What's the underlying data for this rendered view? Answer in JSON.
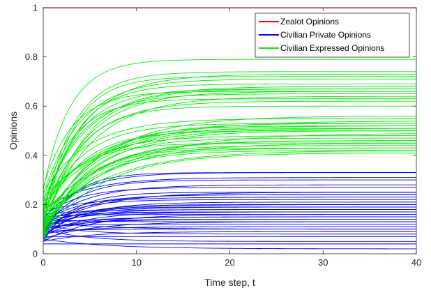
{
  "chart_data": {
    "type": "line",
    "xlabel": "Time step, t",
    "ylabel": "Opinions",
    "xlim": [
      0,
      40
    ],
    "ylim": [
      0,
      1
    ],
    "xticks": [
      0,
      10,
      20,
      30,
      40
    ],
    "yticks": [
      0,
      0.2,
      0.4,
      0.6,
      0.8,
      1
    ],
    "ytick_labels": [
      "0",
      "0.2",
      "0.4",
      "0.6",
      "0.8",
      "1"
    ],
    "grid": false,
    "legend_position": "top-right",
    "colors": {
      "zealot": "#ff0000",
      "private": "#0000ff",
      "expressed": "#00ee00"
    },
    "legend": [
      {
        "label": "Zealot Opinions",
        "series": "zealot"
      },
      {
        "label": "Civilian Private Opinions",
        "series": "private"
      },
      {
        "label": "Civilian Expressed Opinions",
        "series": "expressed"
      }
    ],
    "series": [
      {
        "name": "Zealot Opinions",
        "group": "zealot",
        "x": [
          0,
          40
        ],
        "y": [
          1,
          1
        ]
      },
      {
        "name": "Civilian Private Opinions",
        "group": "private",
        "start": [
          0.06,
          0.04,
          0.1,
          0.07,
          0.12,
          0.05,
          0.09,
          0.13,
          0.08,
          0.11,
          0.06,
          0.14,
          0.1,
          0.07,
          0.12,
          0.09,
          0.15,
          0.05,
          0.11,
          0.08,
          0.13,
          0.16,
          0.1,
          0.06,
          0.12,
          0.09,
          0.14,
          0.07,
          0.11,
          0.17,
          0.08,
          0.13,
          0.05,
          0.1,
          0.15,
          0.12,
          0.09,
          0.18,
          0.07,
          0.14
        ],
        "final": [
          0.02,
          0.04,
          0.05,
          0.07,
          0.08,
          0.09,
          0.1,
          0.1,
          0.11,
          0.12,
          0.13,
          0.13,
          0.14,
          0.14,
          0.15,
          0.15,
          0.16,
          0.16,
          0.17,
          0.17,
          0.17,
          0.18,
          0.18,
          0.19,
          0.19,
          0.2,
          0.2,
          0.21,
          0.22,
          0.23,
          0.24,
          0.24,
          0.25,
          0.25,
          0.27,
          0.28,
          0.3,
          0.31,
          0.33,
          0.33
        ],
        "rate": [
          0.15,
          0.18,
          0.22,
          0.16,
          0.25,
          0.2,
          0.3,
          0.17,
          0.23,
          0.28,
          0.19,
          0.26,
          0.21,
          0.33,
          0.18,
          0.24,
          0.29,
          0.2,
          0.27,
          0.22,
          0.31,
          0.19,
          0.25,
          0.35,
          0.21,
          0.28,
          0.17,
          0.24,
          0.3,
          0.2,
          0.26,
          0.23,
          0.32,
          0.18,
          0.27,
          0.22,
          0.29,
          0.21,
          0.34,
          0.25
        ]
      },
      {
        "name": "Civilian Expressed Opinions",
        "group": "expressed",
        "start": [
          0.07,
          0.1,
          0.13,
          0.05,
          0.16,
          0.08,
          0.12,
          0.19,
          0.1,
          0.15,
          0.06,
          0.21,
          0.11,
          0.14,
          0.09,
          0.18,
          0.23,
          0.07,
          0.13,
          0.17,
          0.1,
          0.2,
          0.25,
          0.12,
          0.08,
          0.16,
          0.22,
          0.11,
          0.19,
          0.14,
          0.27,
          0.09,
          0.17,
          0.21,
          0.13,
          0.24,
          0.1,
          0.18,
          0.15,
          0.26
        ],
        "final": [
          0.41,
          0.42,
          0.42,
          0.43,
          0.43,
          0.44,
          0.45,
          0.45,
          0.46,
          0.46,
          0.47,
          0.48,
          0.49,
          0.5,
          0.5,
          0.51,
          0.51,
          0.52,
          0.52,
          0.53,
          0.53,
          0.54,
          0.55,
          0.56,
          0.6,
          0.62,
          0.63,
          0.64,
          0.65,
          0.66,
          0.66,
          0.67,
          0.67,
          0.68,
          0.69,
          0.71,
          0.72,
          0.73,
          0.74,
          0.79
        ],
        "rate": [
          0.16,
          0.2,
          0.14,
          0.24,
          0.18,
          0.22,
          0.15,
          0.26,
          0.19,
          0.17,
          0.23,
          0.21,
          0.13,
          0.25,
          0.18,
          0.2,
          0.15,
          0.22,
          0.17,
          0.24,
          0.19,
          0.14,
          0.21,
          0.16,
          0.28,
          0.23,
          0.3,
          0.2,
          0.26,
          0.22,
          0.32,
          0.24,
          0.27,
          0.21,
          0.29,
          0.25,
          0.33,
          0.23,
          0.31,
          0.35
        ]
      }
    ]
  }
}
